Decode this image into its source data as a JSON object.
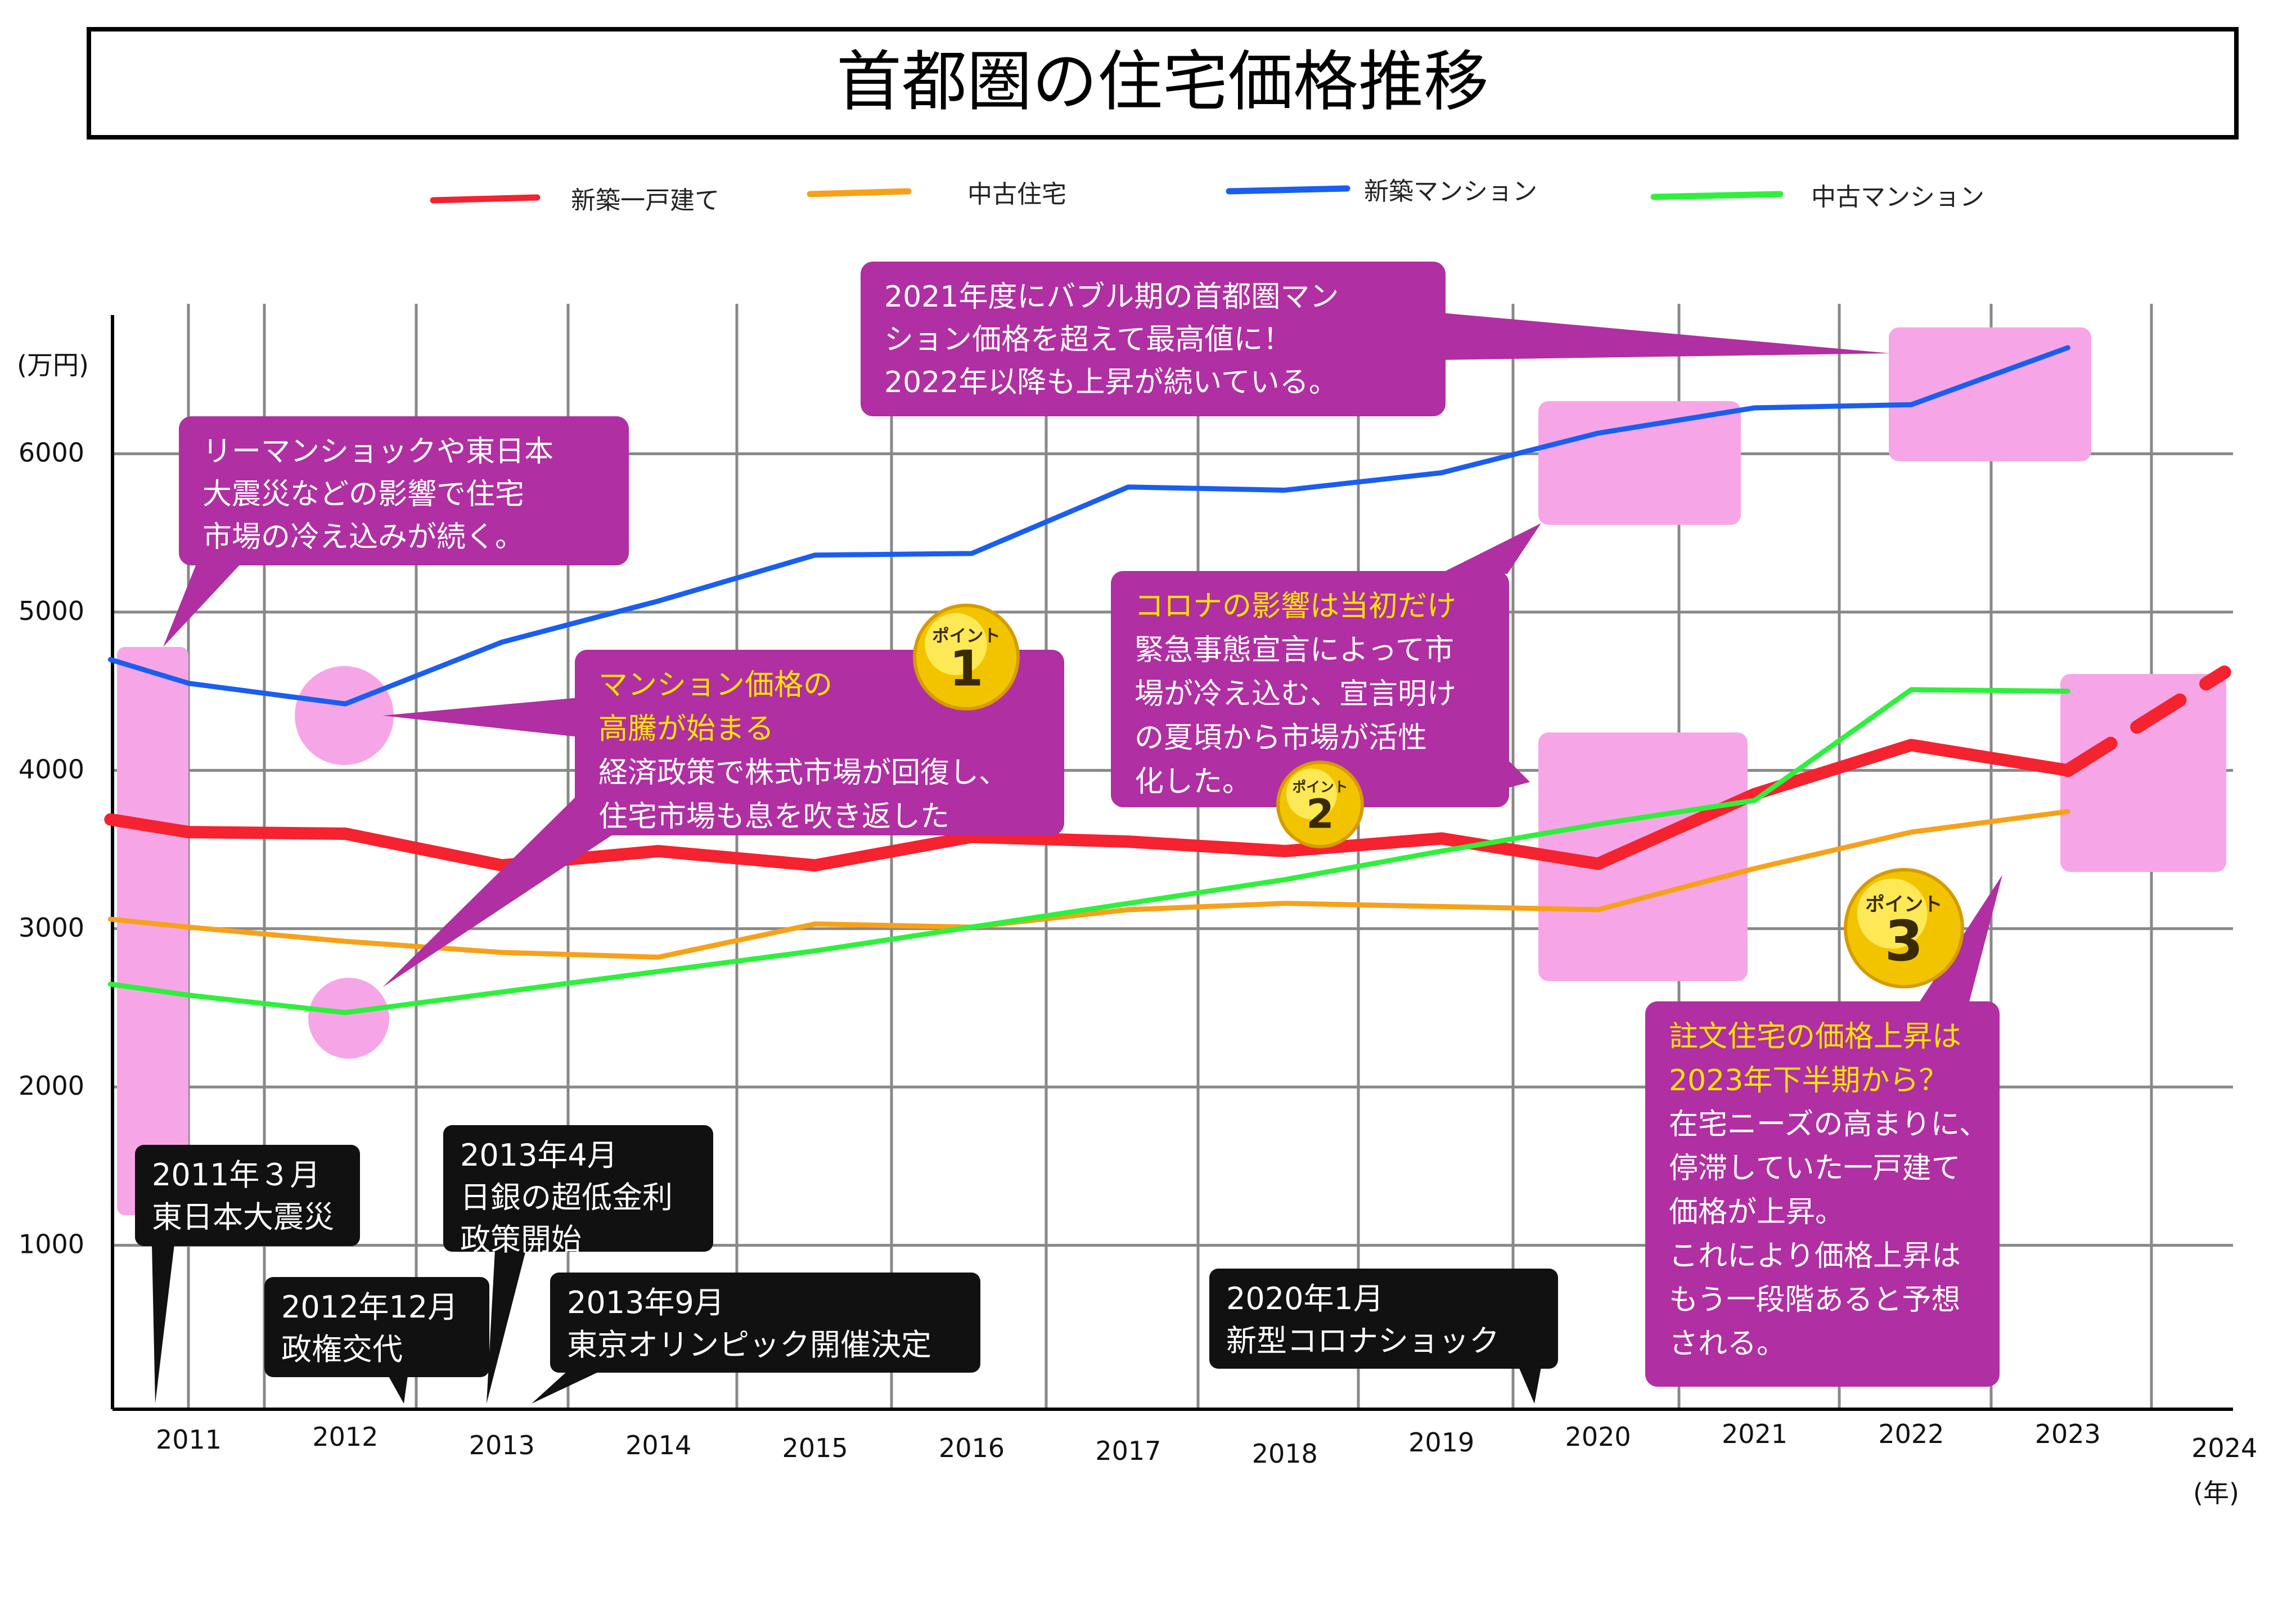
{
  "chart_data": {
    "type": "line",
    "title": "首都圏の住宅価格推移",
    "y_unit": "(万円)",
    "x_unit": "(年)",
    "ylim": [
      0,
      6800
    ],
    "y_ticks": [
      1000,
      2000,
      3000,
      4000,
      5000,
      6000
    ],
    "x_ticks": [
      2011,
      2012,
      2013,
      2014,
      2015,
      2016,
      2017,
      2018,
      2019,
      2020,
      2021,
      2022,
      2023,
      2024
    ],
    "grid": true,
    "legend_position": "top",
    "series": [
      {
        "name": "新築一戸建て",
        "color": "#f52230",
        "points": [
          [
            2010.5,
            3690
          ],
          [
            2011,
            3610
          ],
          [
            2012,
            3600
          ],
          [
            2013,
            3400
          ],
          [
            2014,
            3490
          ],
          [
            2015,
            3400
          ],
          [
            2016,
            3580
          ],
          [
            2017,
            3550
          ],
          [
            2018,
            3490
          ],
          [
            2019,
            3570
          ],
          [
            2020,
            3410
          ],
          [
            2021,
            3850
          ],
          [
            2022,
            4160
          ],
          [
            2023,
            4000
          ]
        ],
        "projection": [
          [
            2023,
            4000
          ],
          [
            2024,
            4620
          ]
        ]
      },
      {
        "name": "中古住宅",
        "color": "#f7a11a",
        "points": [
          [
            2010.5,
            3060
          ],
          [
            2011,
            3010
          ],
          [
            2012,
            2920
          ],
          [
            2013,
            2850
          ],
          [
            2014,
            2820
          ],
          [
            2015,
            3030
          ],
          [
            2016,
            3010
          ],
          [
            2017,
            3120
          ],
          [
            2018,
            3160
          ],
          [
            2019,
            3140
          ],
          [
            2020,
            3120
          ],
          [
            2021,
            3380
          ],
          [
            2022,
            3610
          ],
          [
            2023,
            3740
          ]
        ]
      },
      {
        "name": "新築マンション",
        "color": "#1a5ef0",
        "points": [
          [
            2010.5,
            4700
          ],
          [
            2011,
            4550
          ],
          [
            2012,
            4420
          ],
          [
            2013,
            4810
          ],
          [
            2014,
            5070
          ],
          [
            2015,
            5360
          ],
          [
            2016,
            5370
          ],
          [
            2017,
            5790
          ],
          [
            2018,
            5770
          ],
          [
            2019,
            5880
          ],
          [
            2020,
            6130
          ],
          [
            2021,
            6290
          ],
          [
            2022,
            6310
          ],
          [
            2023,
            6670
          ]
        ]
      },
      {
        "name": "中古マンション",
        "color": "#2ef03c",
        "points": [
          [
            2010.5,
            2650
          ],
          [
            2011,
            2580
          ],
          [
            2012,
            2470
          ],
          [
            2013,
            2600
          ],
          [
            2014,
            2730
          ],
          [
            2015,
            2860
          ],
          [
            2016,
            3010
          ],
          [
            2017,
            3160
          ],
          [
            2018,
            3310
          ],
          [
            2019,
            3490
          ],
          [
            2020,
            3660
          ],
          [
            2021,
            3810
          ],
          [
            2022,
            4510
          ],
          [
            2023,
            4500
          ]
        ]
      }
    ],
    "callouts": [
      {
        "lines": [
          "リーマンショックや東日本",
          "大震災などの影響で住宅",
          "市場の冷え込みが続く。"
        ]
      },
      {
        "lines": [
          "2021年度にバブル期の首都圏マン",
          "ション価格を超えて最高値に！",
          "2022年以降も上昇が続いている。"
        ]
      },
      {
        "highlight": [
          "マンション価格の",
          "高騰が始まる"
        ],
        "lines": [
          "経済政策で株式市場が回復し、",
          "住宅市場も息を吹き返した"
        ]
      },
      {
        "highlight": [
          "コロナの影響は当初だけ"
        ],
        "lines": [
          "緊急事態宣言によって市",
          "場が冷え込む、宣言明け",
          "の夏頃から市場が活性",
          "化した。"
        ]
      },
      {
        "highlight": [
          "註文住宅の価格上昇は",
          "2023年下半期から？"
        ],
        "lines": [
          "在宅ニーズの高まりに、",
          "停滞していた一戸建て",
          "価格が上昇。",
          "これにより価格上昇は",
          "もう一段階あると予想",
          "される。"
        ]
      }
    ],
    "events": [
      [
        "2011年３月",
        "東日本大震災"
      ],
      [
        "2012年12月",
        "政権交代"
      ],
      [
        "2013年4月",
        "日銀の超低金利",
        "政策開始"
      ],
      [
        "2013年9月",
        "東京オリンピック開催決定"
      ],
      [
        "2020年1月",
        "新型コロナショック"
      ]
    ],
    "badges": [
      {
        "label": "ポイント",
        "number": "1"
      },
      {
        "label": "ポイント",
        "number": "2"
      },
      {
        "label": "ポイント",
        "number": "3"
      }
    ]
  }
}
